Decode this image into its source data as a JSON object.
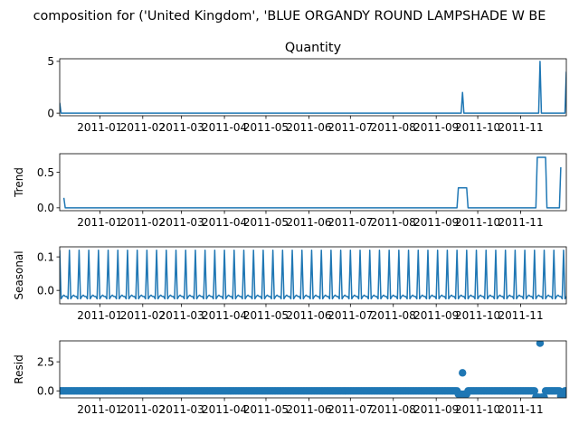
{
  "chart_data": {
    "type": "line",
    "title": "composition for ('United Kingdom', 'BLUE ORGANDY ROUND LAMPSHADE W BE",
    "color": "#1f77b4",
    "x_start": "2010-12-03",
    "x_end": "2011-12-04",
    "x_ticks": [
      {
        "date": "2011-01-01",
        "label": "2011-01"
      },
      {
        "date": "2011-02-01",
        "label": "2011-02"
      },
      {
        "date": "2011-03-01",
        "label": "2011-03"
      },
      {
        "date": "2011-04-01",
        "label": "2011-04"
      },
      {
        "date": "2011-05-01",
        "label": "2011-05"
      },
      {
        "date": "2011-06-01",
        "label": "2011-06"
      },
      {
        "date": "2011-07-01",
        "label": "2011-07"
      },
      {
        "date": "2011-08-01",
        "label": "2011-08"
      },
      {
        "date": "2011-09-01",
        "label": "2011-09"
      },
      {
        "date": "2011-10-01",
        "label": "2011-10"
      },
      {
        "date": "2011-11-01",
        "label": "2011-11"
      }
    ],
    "panels": [
      {
        "id": "observed",
        "title": "Quantity",
        "ylabel": "",
        "ylim": [
          -0.25,
          5.25
        ],
        "yticks": [
          {
            "v": 0,
            "label": "0"
          },
          {
            "v": 5,
            "label": "5"
          }
        ],
        "style": "line",
        "series": [
          {
            "values": [
              [
                "2010-12-03",
                1
              ],
              [
                "2010-12-04",
                0
              ],
              [
                "2011-09-19",
                0
              ],
              [
                "2011-09-20",
                2
              ],
              [
                "2011-09-21",
                0
              ],
              [
                "2011-11-14",
                0
              ],
              [
                "2011-11-15",
                5
              ],
              [
                "2011-11-16",
                0
              ],
              [
                "2011-12-03",
                0
              ],
              [
                "2011-12-04",
                4
              ]
            ]
          }
        ]
      },
      {
        "id": "trend",
        "title": "",
        "ylabel": "Trend",
        "ylim": [
          -0.04,
          0.76
        ],
        "yticks": [
          {
            "v": 0,
            "label": "0.0"
          },
          {
            "v": 0.5,
            "label": "0.5"
          }
        ],
        "style": "line",
        "series": [
          {
            "values": [
              [
                "2010-12-06",
                0.14
              ],
              [
                "2010-12-07",
                0
              ],
              [
                "2011-09-16",
                0
              ],
              [
                "2011-09-17",
                0.28
              ],
              [
                "2011-09-23",
                0.28
              ],
              [
                "2011-09-24",
                0
              ],
              [
                "2011-11-12",
                0
              ],
              [
                "2011-11-13",
                0.71
              ],
              [
                "2011-11-19",
                0.71
              ],
              [
                "2011-11-20",
                0
              ],
              [
                "2011-11-29",
                0
              ],
              [
                "2011-11-30",
                0.57
              ]
            ]
          }
        ]
      },
      {
        "id": "seasonal",
        "title": "",
        "ylabel": "Seasonal",
        "ylim": [
          -0.04,
          0.13
        ],
        "yticks": [
          {
            "v": 0,
            "label": "0.0"
          },
          {
            "v": 0.1,
            "label": "0.1"
          }
        ],
        "style": "seasonal",
        "period_days": 7,
        "peak": 0.12,
        "trough": -0.025,
        "base": -0.018
      },
      {
        "id": "resid",
        "title": "",
        "ylabel": "Resid",
        "ylim": [
          -0.6,
          4.3
        ],
        "yticks": [
          {
            "v": 0,
            "label": "0.0"
          },
          {
            "v": 2.5,
            "label": "2.5"
          }
        ],
        "style": "scatter",
        "base_value": 0,
        "outliers": [
          [
            "2011-09-17",
            -0.28
          ],
          [
            "2011-09-18",
            -0.28
          ],
          [
            "2011-09-19",
            -0.28
          ],
          [
            "2011-09-20",
            1.55
          ],
          [
            "2011-09-21",
            -0.28
          ],
          [
            "2011-09-22",
            -0.28
          ],
          [
            "2011-09-23",
            -0.28
          ],
          [
            "2011-11-12",
            -0.55
          ],
          [
            "2011-11-13",
            -0.55
          ],
          [
            "2011-11-14",
            -0.55
          ],
          [
            "2011-11-15",
            4.1
          ],
          [
            "2011-11-16",
            -0.55
          ],
          [
            "2011-11-17",
            -0.55
          ],
          [
            "2011-11-18",
            -0.55
          ],
          [
            "2011-11-30",
            -0.45
          ],
          [
            "2011-12-01",
            -0.1
          ],
          [
            "2011-12-02",
            -0.3
          ]
        ]
      }
    ]
  }
}
